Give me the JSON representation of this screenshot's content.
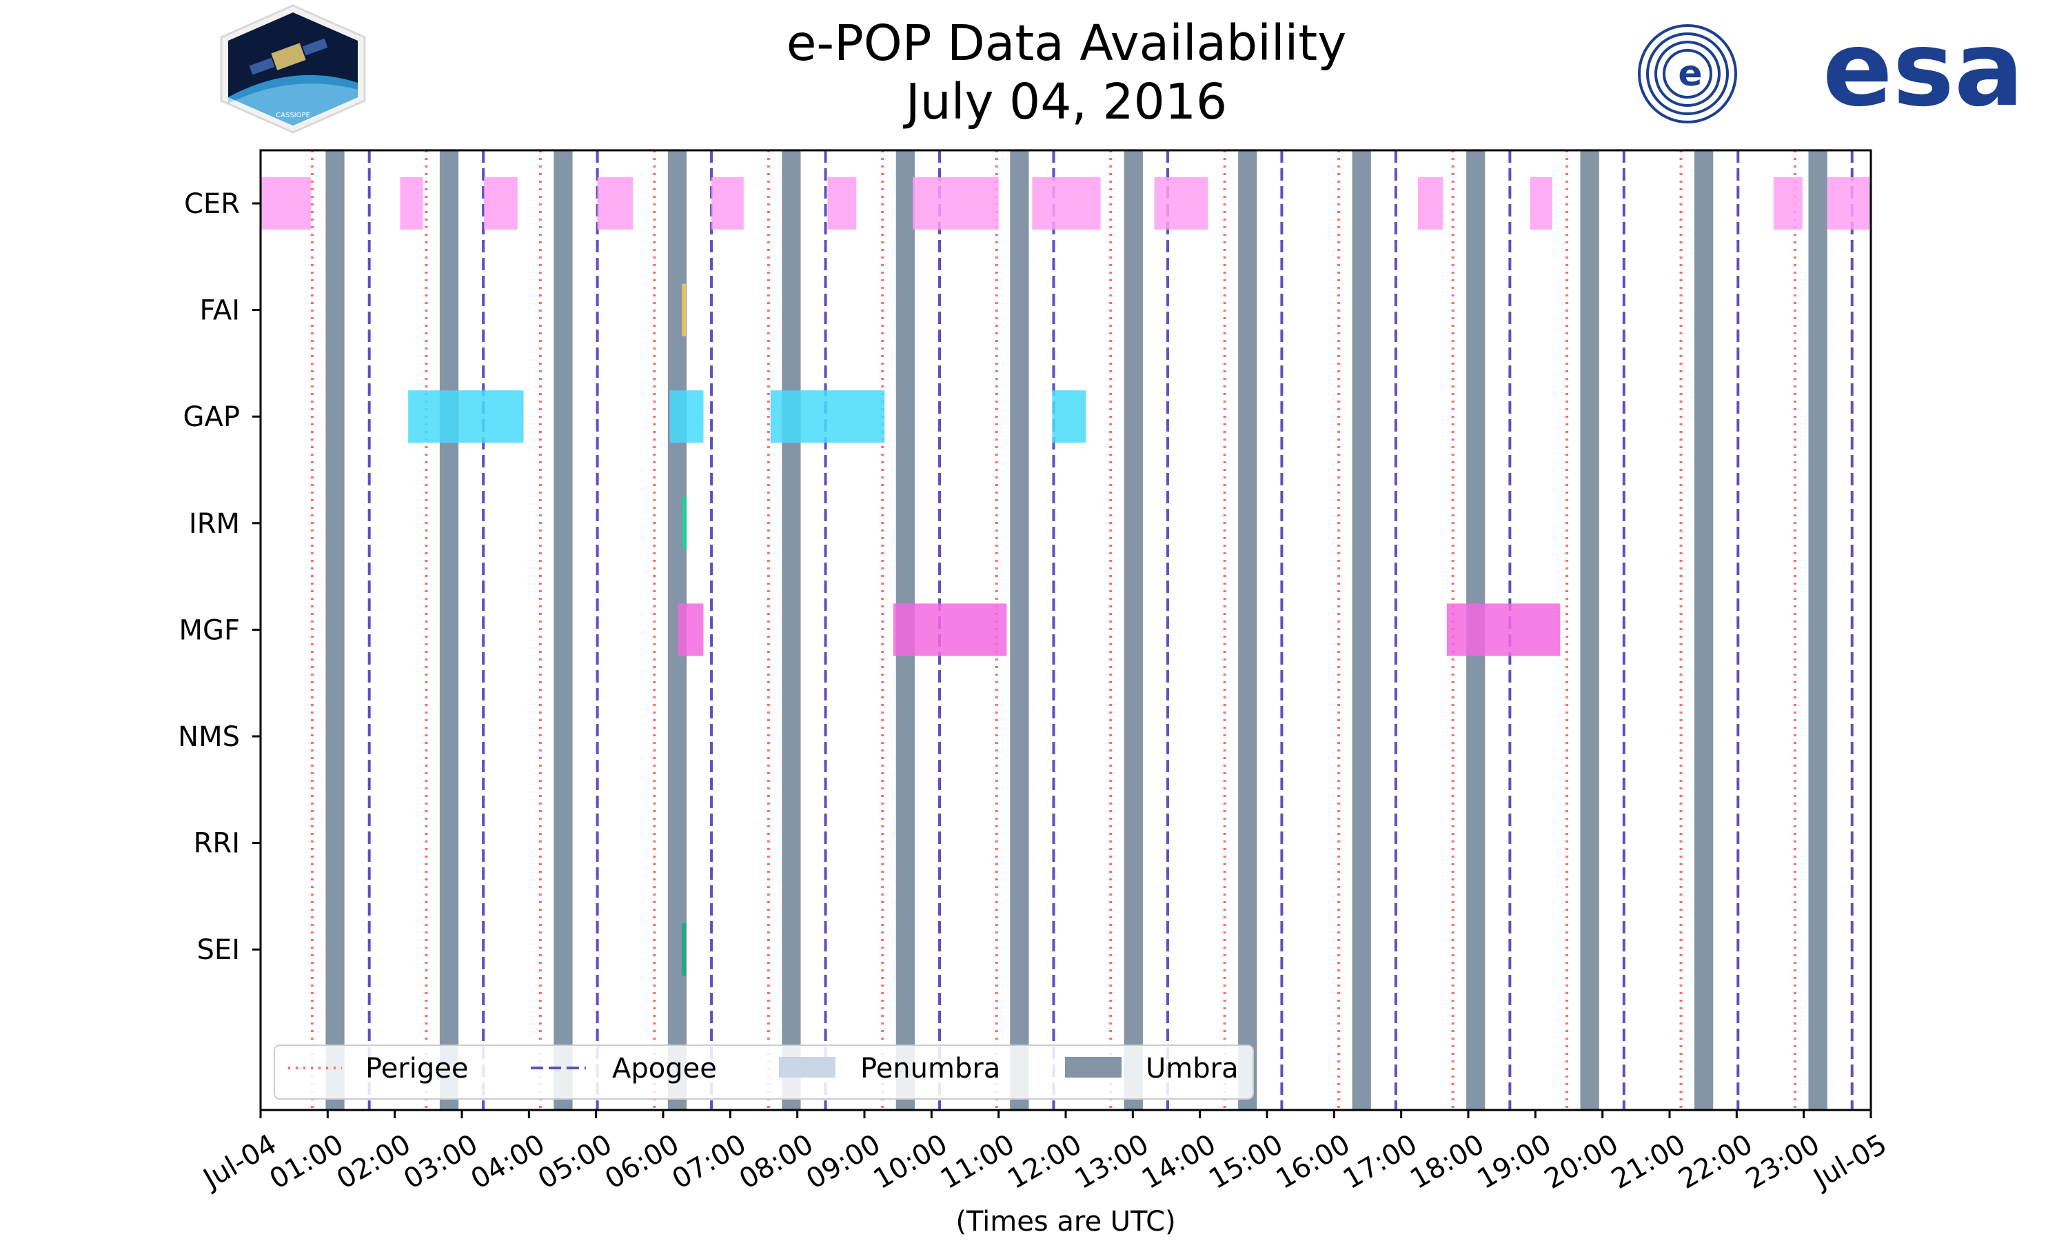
{
  "chart_data": {
    "type": "timeline",
    "title_line1": "e-POP Data Availability",
    "title_line2": "July 04, 2016",
    "xlabel": "(Times are UTC)",
    "x_unit": "hours since 2016-07-04 00:00 UTC",
    "xlim": [
      0,
      24
    ],
    "x_ticks": [
      {
        "value": 0,
        "label": "Jul-04"
      },
      {
        "value": 1,
        "label": "01:00"
      },
      {
        "value": 2,
        "label": "02:00"
      },
      {
        "value": 3,
        "label": "03:00"
      },
      {
        "value": 4,
        "label": "04:00"
      },
      {
        "value": 5,
        "label": "05:00"
      },
      {
        "value": 6,
        "label": "06:00"
      },
      {
        "value": 7,
        "label": "07:00"
      },
      {
        "value": 8,
        "label": "08:00"
      },
      {
        "value": 9,
        "label": "09:00"
      },
      {
        "value": 10,
        "label": "10:00"
      },
      {
        "value": 11,
        "label": "11:00"
      },
      {
        "value": 12,
        "label": "12:00"
      },
      {
        "value": 13,
        "label": "13:00"
      },
      {
        "value": 14,
        "label": "14:00"
      },
      {
        "value": 15,
        "label": "15:00"
      },
      {
        "value": 16,
        "label": "16:00"
      },
      {
        "value": 17,
        "label": "17:00"
      },
      {
        "value": 18,
        "label": "18:00"
      },
      {
        "value": 19,
        "label": "19:00"
      },
      {
        "value": 20,
        "label": "20:00"
      },
      {
        "value": 21,
        "label": "21:00"
      },
      {
        "value": 22,
        "label": "22:00"
      },
      {
        "value": 23,
        "label": "23:00"
      },
      {
        "value": 24,
        "label": "Jul-05"
      }
    ],
    "instruments": [
      "CER",
      "FAI",
      "GAP",
      "IRM",
      "MGF",
      "NMS",
      "RRI",
      "SEI"
    ],
    "colors": {
      "CER": "#ff9ff3",
      "FAI": "#feca57",
      "GAP": "#48dbfb",
      "IRM": "#1dd1a1",
      "MGF": "#f368e0",
      "NMS": "#ff6b6b",
      "RRI": "#54a0ff",
      "SEI": "#10ac84",
      "perigee": "#ff6b6b",
      "apogee": "#5f4fbf",
      "penumbra": "#c8d6e5",
      "umbra": "#8395a7",
      "axis": "#000000",
      "legend_border": "#cccccc"
    },
    "series": [
      {
        "name": "CER",
        "intervals": [
          [
            0.0,
            0.75
          ],
          [
            2.08,
            2.42
          ],
          [
            3.33,
            3.83
          ],
          [
            5.02,
            5.55
          ],
          [
            6.72,
            7.2
          ],
          [
            8.45,
            8.88
          ],
          [
            9.72,
            11.0
          ],
          [
            11.5,
            12.52
          ],
          [
            13.32,
            14.12
          ],
          [
            17.25,
            17.62
          ],
          [
            18.92,
            19.25
          ],
          [
            22.55,
            22.98
          ],
          [
            23.35,
            24.0
          ]
        ]
      },
      {
        "name": "FAI",
        "intervals": [
          [
            6.28,
            6.34
          ]
        ]
      },
      {
        "name": "GAP",
        "intervals": [
          [
            2.2,
            3.92
          ],
          [
            6.1,
            6.6
          ],
          [
            7.6,
            9.3
          ],
          [
            11.8,
            12.3
          ]
        ]
      },
      {
        "name": "IRM",
        "intervals": [
          [
            6.28,
            6.35
          ]
        ]
      },
      {
        "name": "MGF",
        "intervals": [
          [
            6.22,
            6.6
          ],
          [
            9.43,
            11.12
          ],
          [
            17.68,
            19.37
          ]
        ]
      },
      {
        "name": "NMS",
        "intervals": []
      },
      {
        "name": "RRI",
        "intervals": []
      },
      {
        "name": "SEI",
        "intervals": [
          [
            6.28,
            6.34
          ]
        ]
      }
    ],
    "perigee": [
      0.77,
      2.47,
      4.17,
      5.87,
      7.57,
      9.27,
      10.97,
      12.67,
      14.37,
      16.07,
      17.77,
      19.47,
      21.17,
      22.87
    ],
    "apogee": [
      1.62,
      3.32,
      5.02,
      6.72,
      8.42,
      10.12,
      11.82,
      13.52,
      15.22,
      16.92,
      18.62,
      20.32,
      22.02,
      23.72
    ],
    "umbra": [
      [
        0.97,
        1.25
      ],
      [
        2.67,
        2.95
      ],
      [
        4.37,
        4.65
      ],
      [
        6.07,
        6.35
      ],
      [
        7.77,
        8.05
      ],
      [
        9.47,
        9.75
      ],
      [
        11.17,
        11.45
      ],
      [
        12.87,
        13.15
      ],
      [
        14.57,
        14.85
      ],
      [
        16.27,
        16.55
      ],
      [
        17.97,
        18.25
      ],
      [
        19.67,
        19.95
      ],
      [
        21.37,
        21.65
      ],
      [
        23.07,
        23.35
      ]
    ],
    "legend": {
      "placement": "bottom-left",
      "entries": [
        {
          "label": "Perigee",
          "kind": "perigee"
        },
        {
          "label": "Apogee",
          "kind": "apogee"
        },
        {
          "label": "Penumbra",
          "kind": "penumbra"
        },
        {
          "label": "Umbra",
          "kind": "umbra"
        }
      ]
    }
  },
  "logos": {
    "left": {
      "name": "CASSIOPE mission patch",
      "text": "CASSIOPE"
    },
    "right": {
      "name": "ESA logo",
      "text": "esa"
    }
  }
}
